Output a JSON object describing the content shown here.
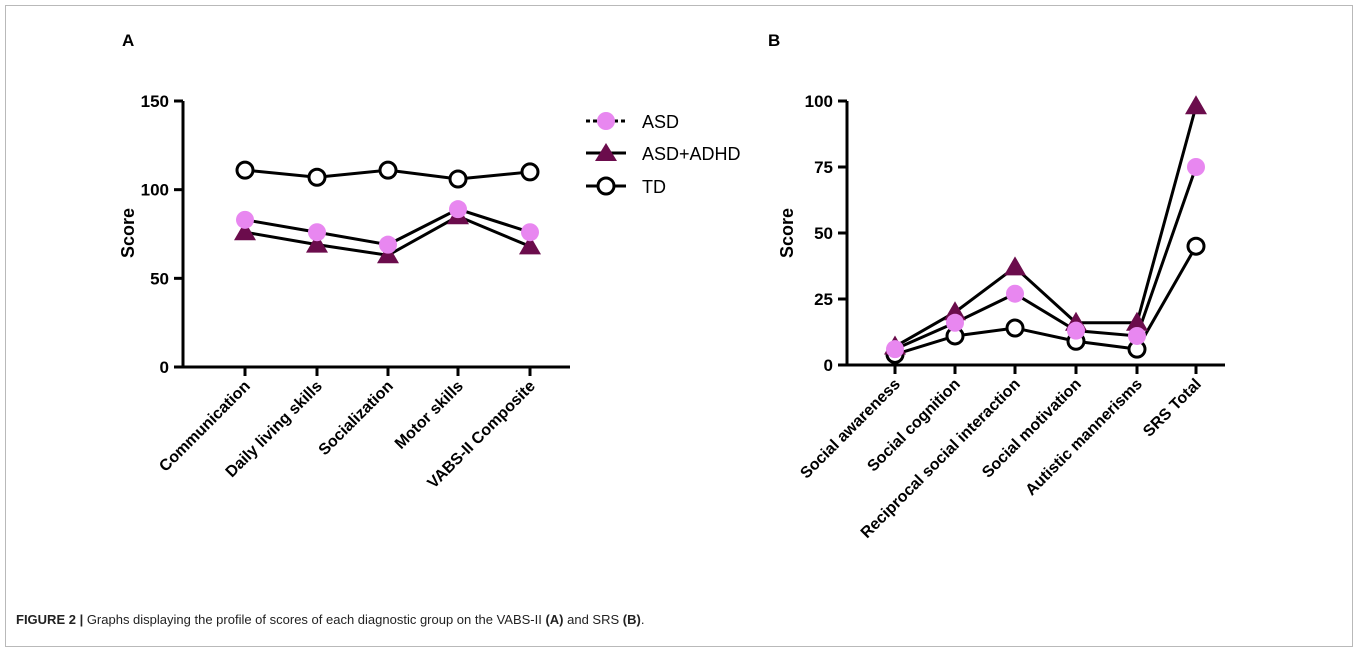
{
  "chart_data": [
    {
      "panel": "A",
      "type": "line",
      "ylabel": "Score",
      "ylim": [
        0,
        150
      ],
      "yticks": [
        0,
        50,
        100,
        150
      ],
      "categories": [
        "Communication",
        "Daily living skills",
        "Socialization",
        "Motor skills",
        "VABS-II Composite"
      ],
      "series": [
        {
          "name": "ASD",
          "values": [
            83,
            76,
            69,
            89,
            76
          ]
        },
        {
          "name": "ASD+ADHD",
          "values": [
            76,
            69,
            63,
            85,
            68
          ]
        },
        {
          "name": "TD",
          "values": [
            111,
            107,
            111,
            106,
            110
          ]
        }
      ]
    },
    {
      "panel": "B",
      "type": "line",
      "ylabel": "Score",
      "ylim": [
        0,
        100
      ],
      "yticks": [
        0,
        25,
        50,
        75,
        100
      ],
      "categories": [
        "Social awareness",
        "Social cognition",
        "Reciprocal social interaction",
        "Social motivation",
        "Autistic mannerisms",
        "SRS Total"
      ],
      "series": [
        {
          "name": "ASD",
          "values": [
            6,
            16,
            27,
            13,
            11,
            75
          ]
        },
        {
          "name": "ASD+ADHD",
          "values": [
            7,
            20,
            37,
            16,
            16,
            98
          ]
        },
        {
          "name": "TD",
          "values": [
            4,
            11,
            14,
            9,
            6,
            45
          ]
        }
      ]
    }
  ],
  "legend": {
    "placement": "right of panel A",
    "items": [
      {
        "name": "ASD",
        "marker": "circle-filled",
        "color": "#e887f0"
      },
      {
        "name": "ASD+ADHD",
        "marker": "triangle-filled",
        "color": "#6b0c4c"
      },
      {
        "name": "TD",
        "marker": "circle-open",
        "color": "#000000"
      }
    ]
  },
  "colors": {
    "ASD": "#e887f0",
    "ASD+ADHD": "#6b0c4c",
    "TD": "#ffffff",
    "line": "#000000"
  },
  "caption": {
    "figure": "FIGURE 2 |",
    "text_before_a": " Graphs displaying the profile of scores of each diagnostic group on the VABS-II ",
    "a": "(A)",
    "text_mid": " and SRS ",
    "b": "(B)",
    "text_end": "."
  }
}
